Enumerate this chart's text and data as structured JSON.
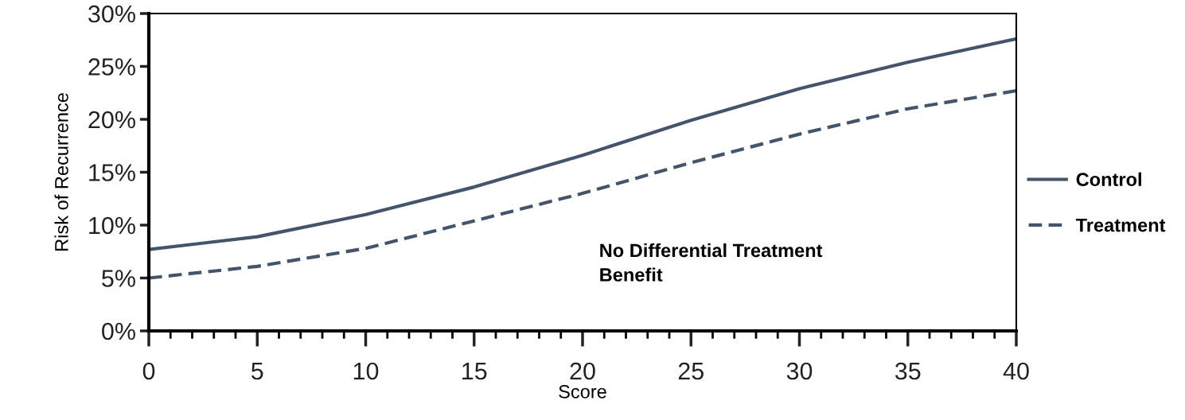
{
  "chart_data": {
    "type": "line",
    "xlabel": "Score",
    "ylabel": "Risk of Recurrence",
    "x": [
      0,
      5,
      10,
      15,
      20,
      25,
      30,
      35,
      40
    ],
    "series": [
      {
        "name": "Control",
        "color": "#44546a",
        "line_style": "solid",
        "values": [
          7.7,
          8.9,
          11.0,
          13.6,
          16.6,
          19.9,
          22.9,
          25.4,
          27.6
        ]
      },
      {
        "name": "Treatment",
        "color": "#44546a",
        "line_style": "dashed",
        "values": [
          5.0,
          6.1,
          7.8,
          10.4,
          13.0,
          15.9,
          18.6,
          21.0,
          22.7
        ]
      }
    ],
    "xlim": [
      0,
      40
    ],
    "xticks": [
      0,
      5,
      10,
      15,
      20,
      25,
      30,
      35,
      40
    ],
    "ylim": [
      0,
      30
    ],
    "yticks": [
      {
        "value": 0,
        "label": "0%"
      },
      {
        "value": 5,
        "label": "5%"
      },
      {
        "value": 10,
        "label": "10%"
      },
      {
        "value": 15,
        "label": "15%"
      },
      {
        "value": 20,
        "label": "20%"
      },
      {
        "value": 25,
        "label": "25%"
      },
      {
        "value": 30,
        "label": "30%"
      }
    ],
    "annotations": [
      {
        "text": "No Differential Treatment\nBenefit"
      }
    ],
    "legend": "right",
    "grid": false,
    "marker": "none"
  }
}
